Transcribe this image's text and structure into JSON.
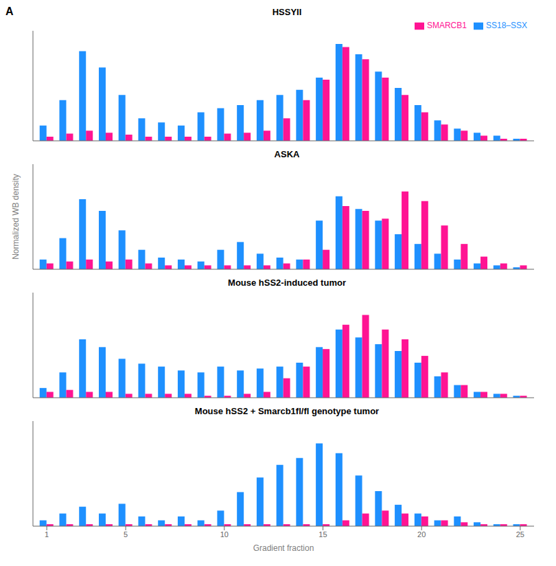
{
  "chart_data": [
    {
      "type": "bar",
      "title": "HSSYII",
      "annotations": [
        "A"
      ],
      "legend": "upper right",
      "x": [
        1,
        2,
        3,
        4,
        5,
        6,
        7,
        8,
        9,
        10,
        11,
        12,
        13,
        14,
        15,
        16,
        17,
        18,
        19,
        20,
        21,
        22,
        23,
        24,
        25
      ],
      "series": [
        {
          "name": "SS18–SSX",
          "color": "#1E90FF",
          "values": [
            0.15,
            0.4,
            0.88,
            0.72,
            0.45,
            0.22,
            0.18,
            0.15,
            0.28,
            0.32,
            0.35,
            0.4,
            0.45,
            0.5,
            0.62,
            0.95,
            0.85,
            0.68,
            0.52,
            0.35,
            0.2,
            0.12,
            0.08,
            0.05,
            0.02
          ]
        },
        {
          "name": "SMARCB1",
          "color": "#FF1493",
          "values": [
            0.04,
            0.07,
            0.1,
            0.08,
            0.06,
            0.04,
            0.04,
            0.04,
            0.04,
            0.07,
            0.08,
            0.1,
            0.22,
            0.4,
            0.6,
            0.92,
            0.8,
            0.62,
            0.45,
            0.28,
            0.16,
            0.1,
            0.05,
            0.02,
            0.02
          ]
        }
      ],
      "xlim": [
        0.3,
        25.7
      ],
      "ylim": [
        0,
        1.08
      ],
      "tick_labels": false
    },
    {
      "type": "bar",
      "title": "ASKA",
      "ylabel": "Normalized WB density",
      "x": [
        1,
        2,
        3,
        4,
        5,
        6,
        7,
        8,
        9,
        10,
        11,
        12,
        13,
        14,
        15,
        16,
        17,
        18,
        19,
        20,
        21,
        22,
        23,
        24,
        25
      ],
      "series": [
        {
          "name": "SS18–SSX",
          "color": "#1E90FF",
          "values": [
            0.1,
            0.32,
            0.72,
            0.6,
            0.4,
            0.2,
            0.12,
            0.1,
            0.08,
            0.2,
            0.28,
            0.16,
            0.12,
            0.1,
            0.5,
            0.75,
            0.62,
            0.5,
            0.36,
            0.26,
            0.16,
            0.1,
            0.06,
            0.04,
            0.02
          ]
        },
        {
          "name": "SMARCB1",
          "color": "#FF1493",
          "values": [
            0.06,
            0.08,
            0.1,
            0.08,
            0.1,
            0.06,
            0.04,
            0.04,
            0.04,
            0.04,
            0.04,
            0.04,
            0.06,
            0.1,
            0.2,
            0.65,
            0.6,
            0.52,
            0.8,
            0.7,
            0.45,
            0.26,
            0.13,
            0.06,
            0.04
          ]
        }
      ],
      "xlim": [
        0.3,
        25.7
      ],
      "ylim": [
        0,
        1.08
      ],
      "tick_labels": false
    },
    {
      "type": "bar",
      "title": "Mouse hSS2-induced tumor",
      "x": [
        1,
        2,
        3,
        4,
        5,
        6,
        7,
        8,
        9,
        10,
        11,
        12,
        13,
        14,
        15,
        16,
        17,
        18,
        19,
        20,
        21,
        22,
        23,
        24,
        25
      ],
      "series": [
        {
          "name": "SS18–SSX",
          "color": "#1E90FF",
          "values": [
            0.1,
            0.26,
            0.6,
            0.52,
            0.4,
            0.35,
            0.32,
            0.28,
            0.26,
            0.32,
            0.28,
            0.3,
            0.32,
            0.36,
            0.52,
            0.7,
            0.62,
            0.55,
            0.48,
            0.36,
            0.22,
            0.13,
            0.06,
            0.04,
            0.02
          ]
        },
        {
          "name": "SMARCB1",
          "color": "#FF1493",
          "values": [
            0.06,
            0.08,
            0.06,
            0.06,
            0.04,
            0.04,
            0.04,
            0.04,
            0.02,
            0.02,
            0.04,
            0.06,
            0.2,
            0.32,
            0.5,
            0.75,
            0.85,
            0.7,
            0.6,
            0.43,
            0.26,
            0.13,
            0.06,
            0.04,
            0.02
          ]
        }
      ],
      "xlim": [
        0.3,
        25.7
      ],
      "ylim": [
        0,
        1.08
      ],
      "tick_labels": false
    },
    {
      "type": "bar",
      "title": "Mouse hSS2 + Smarcb1fl/fl genotype tumor",
      "xlabel": "Gradient fraction",
      "x": [
        1,
        2,
        3,
        4,
        5,
        6,
        7,
        8,
        9,
        10,
        11,
        12,
        13,
        14,
        15,
        16,
        17,
        18,
        19,
        20,
        21,
        22,
        23,
        24,
        25
      ],
      "series": [
        {
          "name": "SS18–SSX",
          "color": "#1E90FF",
          "values": [
            0.06,
            0.13,
            0.2,
            0.13,
            0.23,
            0.1,
            0.06,
            0.1,
            0.06,
            0.16,
            0.35,
            0.5,
            0.63,
            0.7,
            0.85,
            0.75,
            0.52,
            0.36,
            0.22,
            0.13,
            0.06,
            0.1,
            0.04,
            0.02,
            0.02
          ]
        },
        {
          "name": "SMARCB1",
          "color": "#FF1493",
          "values": [
            0.02,
            0.02,
            0.02,
            0.02,
            0.02,
            0.02,
            0.02,
            0.02,
            0.02,
            0.02,
            0.02,
            0.02,
            0.02,
            0.02,
            0.02,
            0.06,
            0.13,
            0.16,
            0.13,
            0.1,
            0.06,
            0.04,
            0.02,
            0.02,
            0.02
          ]
        }
      ],
      "xlim": [
        0.3,
        25.7
      ],
      "ylim": [
        0,
        1.08
      ],
      "xticks": [
        1,
        5,
        10,
        15,
        20,
        25
      ],
      "tick_labels": "x"
    }
  ]
}
